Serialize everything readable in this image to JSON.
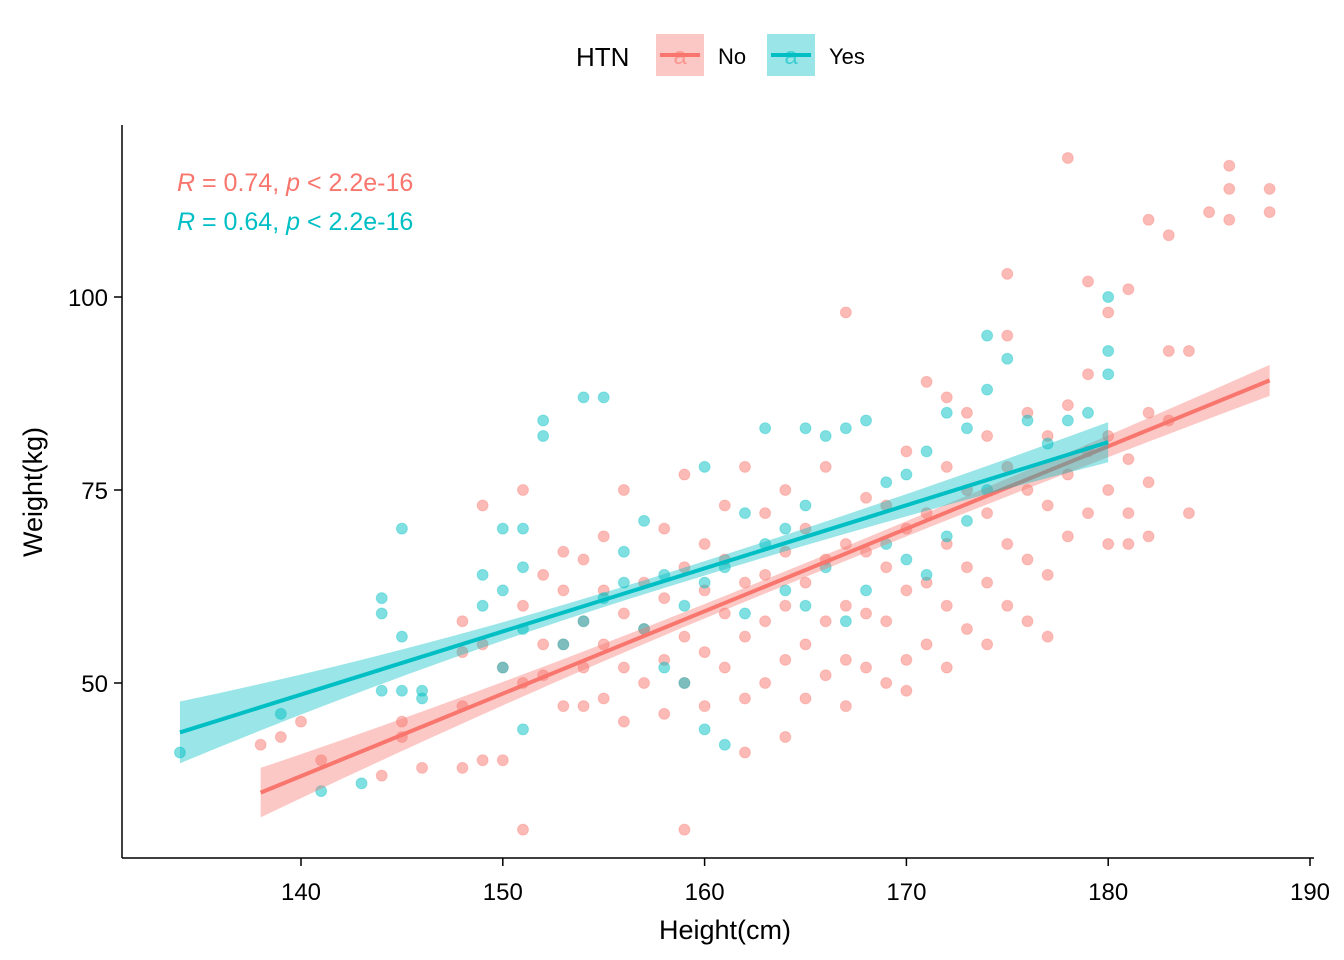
{
  "chart_data": {
    "type": "scatter",
    "xlabel": "Height(cm)",
    "ylabel": "Weight(kg)",
    "xlim": [
      131,
      190
    ],
    "ylim": [
      29.5,
      123
    ],
    "x_ticks": [
      "140",
      "150",
      "160",
      "170",
      "180",
      "190"
    ],
    "y_ticks": [
      "50",
      "75",
      "100"
    ],
    "x_tick_values": [
      140,
      150,
      160,
      170,
      180,
      190
    ],
    "y_tick_values": [
      50,
      75,
      100
    ],
    "grid": false,
    "legend": {
      "title": "HTN",
      "position": "top",
      "key_glyph": "a",
      "entries": [
        "No",
        "Yes"
      ]
    },
    "series": [
      {
        "name": "No",
        "color": "#F8766D",
        "stat_r": "R",
        "stat_mid": " = 0.74, ",
        "stat_p": "p",
        "stat_tail": " < 2.2e-16",
        "fit": {
          "x": [
            138,
            188
          ],
          "y": [
            35.8,
            89.2
          ],
          "ci_start": 3.2,
          "ci_end": 2.0
        },
        "points": [
          [
            138,
            42
          ],
          [
            139,
            43
          ],
          [
            140,
            45
          ],
          [
            141,
            40
          ],
          [
            144,
            38
          ],
          [
            145,
            43
          ],
          [
            145,
            45
          ],
          [
            146,
            39
          ],
          [
            148,
            39
          ],
          [
            148,
            47
          ],
          [
            148,
            54
          ],
          [
            148,
            58
          ],
          [
            149,
            40
          ],
          [
            149,
            55
          ],
          [
            149,
            73
          ],
          [
            150,
            40
          ],
          [
            150,
            52
          ],
          [
            151,
            31
          ],
          [
            151,
            50
          ],
          [
            151,
            60
          ],
          [
            151,
            75
          ],
          [
            152,
            51
          ],
          [
            152,
            55
          ],
          [
            152,
            64
          ],
          [
            153,
            47
          ],
          [
            153,
            55
          ],
          [
            153,
            62
          ],
          [
            153,
            67
          ],
          [
            154,
            47
          ],
          [
            154,
            52
          ],
          [
            154,
            58
          ],
          [
            154,
            66
          ],
          [
            155,
            48
          ],
          [
            155,
            55
          ],
          [
            155,
            62
          ],
          [
            155,
            69
          ],
          [
            156,
            45
          ],
          [
            156,
            52
          ],
          [
            156,
            59
          ],
          [
            156,
            75
          ],
          [
            157,
            50
          ],
          [
            157,
            57
          ],
          [
            157,
            63
          ],
          [
            158,
            46
          ],
          [
            158,
            53
          ],
          [
            158,
            61
          ],
          [
            158,
            70
          ],
          [
            159,
            31
          ],
          [
            159,
            50
          ],
          [
            159,
            56
          ],
          [
            159,
            65
          ],
          [
            159,
            77
          ],
          [
            160,
            47
          ],
          [
            160,
            54
          ],
          [
            160,
            62
          ],
          [
            160,
            68
          ],
          [
            161,
            52
          ],
          [
            161,
            59
          ],
          [
            161,
            66
          ],
          [
            161,
            73
          ],
          [
            162,
            41
          ],
          [
            162,
            48
          ],
          [
            162,
            56
          ],
          [
            162,
            63
          ],
          [
            162,
            78
          ],
          [
            163,
            50
          ],
          [
            163,
            58
          ],
          [
            163,
            64
          ],
          [
            163,
            72
          ],
          [
            164,
            43
          ],
          [
            164,
            53
          ],
          [
            164,
            60
          ],
          [
            164,
            67
          ],
          [
            164,
            75
          ],
          [
            165,
            48
          ],
          [
            165,
            55
          ],
          [
            165,
            63
          ],
          [
            165,
            70
          ],
          [
            166,
            51
          ],
          [
            166,
            58
          ],
          [
            166,
            66
          ],
          [
            166,
            78
          ],
          [
            167,
            47
          ],
          [
            167,
            53
          ],
          [
            167,
            60
          ],
          [
            167,
            68
          ],
          [
            167,
            98
          ],
          [
            168,
            52
          ],
          [
            168,
            59
          ],
          [
            168,
            67
          ],
          [
            168,
            74
          ],
          [
            169,
            50
          ],
          [
            169,
            58
          ],
          [
            169,
            65
          ],
          [
            169,
            73
          ],
          [
            170,
            49
          ],
          [
            170,
            53
          ],
          [
            170,
            62
          ],
          [
            170,
            70
          ],
          [
            170,
            80
          ],
          [
            171,
            55
          ],
          [
            171,
            63
          ],
          [
            171,
            72
          ],
          [
            171,
            89
          ],
          [
            172,
            52
          ],
          [
            172,
            60
          ],
          [
            172,
            68
          ],
          [
            172,
            78
          ],
          [
            172,
            87
          ],
          [
            173,
            57
          ],
          [
            173,
            65
          ],
          [
            173,
            75
          ],
          [
            173,
            85
          ],
          [
            174,
            55
          ],
          [
            174,
            63
          ],
          [
            174,
            72
          ],
          [
            174,
            82
          ],
          [
            175,
            60
          ],
          [
            175,
            68
          ],
          [
            175,
            78
          ],
          [
            175,
            95
          ],
          [
            175,
            103
          ],
          [
            176,
            58
          ],
          [
            176,
            66
          ],
          [
            176,
            75
          ],
          [
            176,
            85
          ],
          [
            177,
            56
          ],
          [
            177,
            64
          ],
          [
            177,
            73
          ],
          [
            177,
            82
          ],
          [
            178,
            69
          ],
          [
            178,
            77
          ],
          [
            178,
            86
          ],
          [
            178,
            118
          ],
          [
            179,
            72
          ],
          [
            179,
            80
          ],
          [
            179,
            90
          ],
          [
            179,
            102
          ],
          [
            180,
            68
          ],
          [
            180,
            75
          ],
          [
            180,
            82
          ],
          [
            180,
            98
          ],
          [
            181,
            68
          ],
          [
            181,
            72
          ],
          [
            181,
            79
          ],
          [
            181,
            101
          ],
          [
            182,
            69
          ],
          [
            182,
            76
          ],
          [
            182,
            85
          ],
          [
            182,
            110
          ],
          [
            183,
            84
          ],
          [
            183,
            93
          ],
          [
            183,
            108
          ],
          [
            184,
            72
          ],
          [
            184,
            93
          ],
          [
            185,
            111
          ],
          [
            186,
            110
          ],
          [
            186,
            114
          ],
          [
            186,
            117
          ],
          [
            188,
            111
          ],
          [
            188,
            114
          ]
        ]
      },
      {
        "name": "Yes",
        "color": "#00BFC4",
        "stat_r": "R",
        "stat_mid": " = 0.64, ",
        "stat_p": "p",
        "stat_tail": " < 2.2e-16",
        "fit": {
          "x": [
            134,
            180
          ],
          "y": [
            43.6,
            81.2
          ],
          "ci_start": 4.0,
          "ci_end": 2.6
        },
        "points": [
          [
            134,
            41
          ],
          [
            139,
            46
          ],
          [
            141,
            36
          ],
          [
            143,
            37
          ],
          [
            144,
            49
          ],
          [
            144,
            59
          ],
          [
            144,
            61
          ],
          [
            145,
            49
          ],
          [
            145,
            56
          ],
          [
            145,
            70
          ],
          [
            146,
            48
          ],
          [
            146,
            49
          ],
          [
            149,
            60
          ],
          [
            149,
            64
          ],
          [
            150,
            52
          ],
          [
            150,
            62
          ],
          [
            150,
            70
          ],
          [
            151,
            44
          ],
          [
            151,
            57
          ],
          [
            151,
            65
          ],
          [
            151,
            70
          ],
          [
            152,
            82
          ],
          [
            152,
            84
          ],
          [
            153,
            55
          ],
          [
            154,
            58
          ],
          [
            154,
            87
          ],
          [
            155,
            61
          ],
          [
            155,
            87
          ],
          [
            156,
            63
          ],
          [
            156,
            67
          ],
          [
            157,
            57
          ],
          [
            157,
            71
          ],
          [
            158,
            52
          ],
          [
            158,
            64
          ],
          [
            159,
            50
          ],
          [
            159,
            60
          ],
          [
            160,
            44
          ],
          [
            160,
            63
          ],
          [
            160,
            78
          ],
          [
            161,
            42
          ],
          [
            161,
            65
          ],
          [
            162,
            59
          ],
          [
            162,
            72
          ],
          [
            163,
            68
          ],
          [
            163,
            83
          ],
          [
            164,
            62
          ],
          [
            164,
            70
          ],
          [
            165,
            60
          ],
          [
            165,
            73
          ],
          [
            165,
            83
          ],
          [
            166,
            65
          ],
          [
            166,
            82
          ],
          [
            167,
            58
          ],
          [
            167,
            83
          ],
          [
            168,
            62
          ],
          [
            168,
            84
          ],
          [
            169,
            68
          ],
          [
            169,
            76
          ],
          [
            170,
            66
          ],
          [
            170,
            77
          ],
          [
            171,
            64
          ],
          [
            171,
            80
          ],
          [
            172,
            69
          ],
          [
            172,
            85
          ],
          [
            173,
            71
          ],
          [
            173,
            83
          ],
          [
            174,
            75
          ],
          [
            174,
            88
          ],
          [
            174,
            95
          ],
          [
            175,
            92
          ],
          [
            176,
            84
          ],
          [
            177,
            81
          ],
          [
            178,
            84
          ],
          [
            179,
            85
          ],
          [
            180,
            90
          ],
          [
            180,
            93
          ],
          [
            180,
            100
          ]
        ]
      }
    ]
  }
}
